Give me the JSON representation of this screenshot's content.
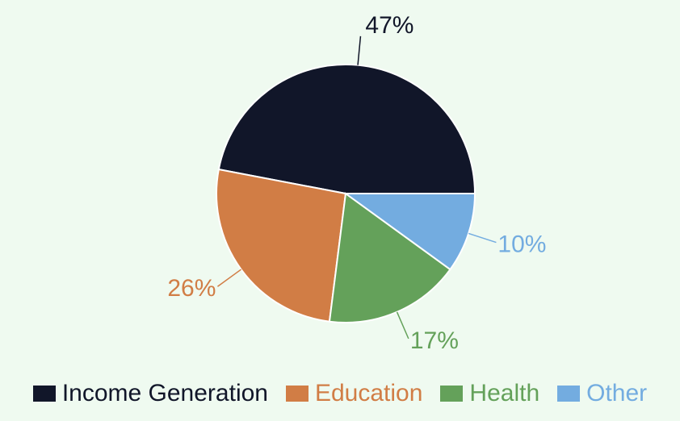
{
  "chart_data": {
    "type": "pie",
    "categories": [
      "Income Generation",
      "Education",
      "Health",
      "Other"
    ],
    "values": [
      47,
      26,
      17,
      10
    ],
    "labels": [
      "47%",
      "26%",
      "17%",
      "10%"
    ],
    "colors": [
      "#111629",
      "#d17d45",
      "#64a15a",
      "#73ace0"
    ],
    "legend_position": "bottom"
  }
}
